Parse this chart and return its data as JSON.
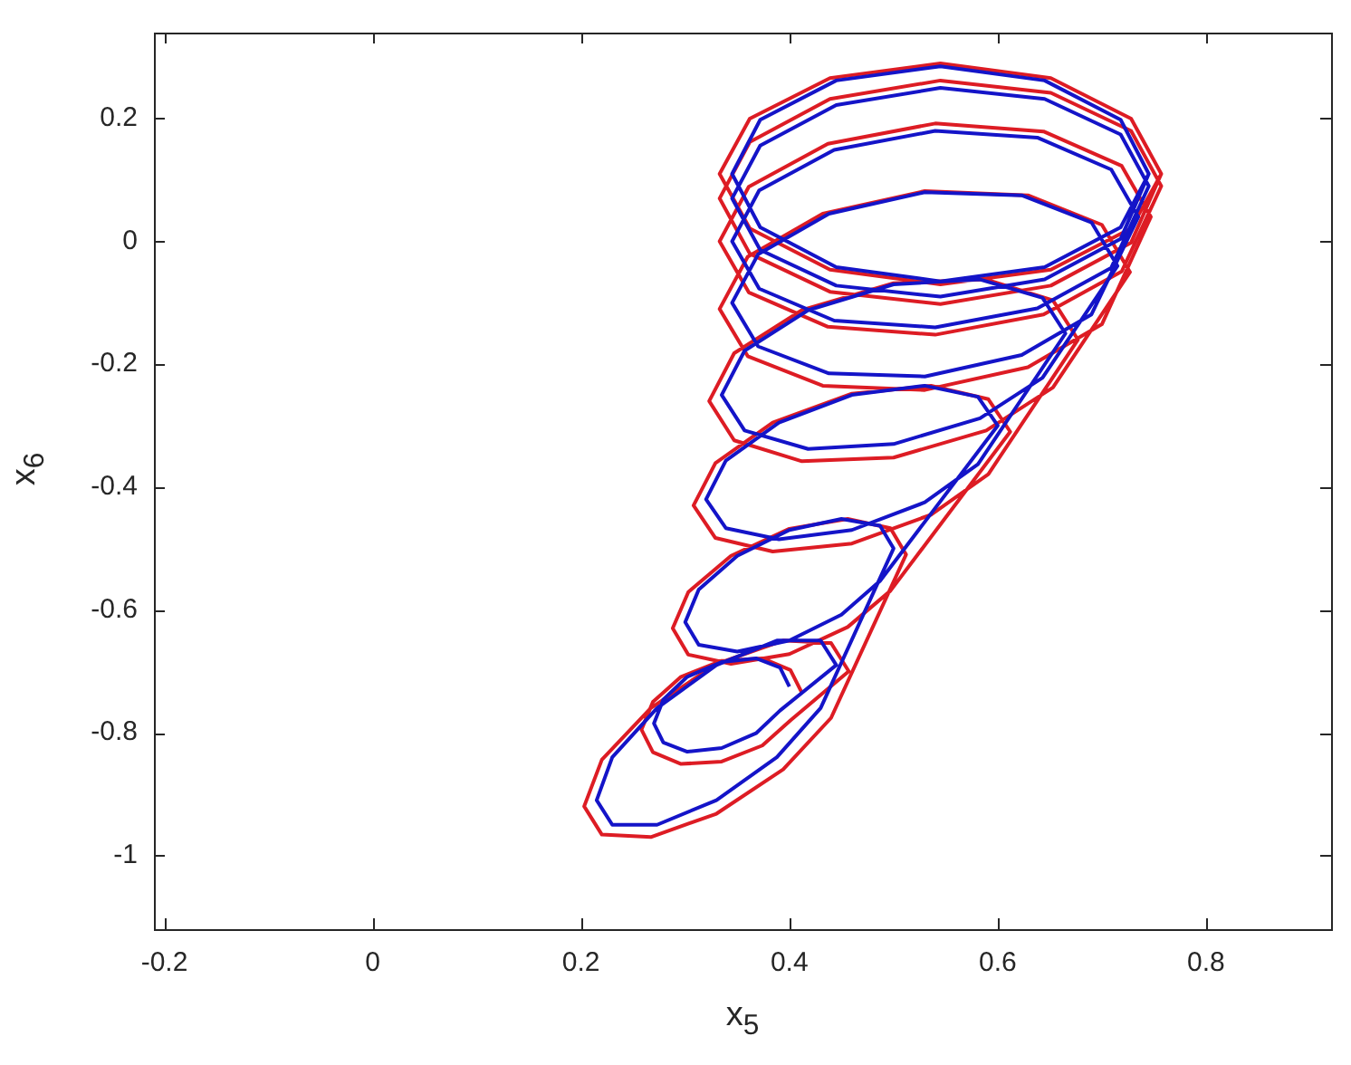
{
  "chart_data": {
    "type": "line",
    "xlabel": "x$_{5}$",
    "ylabel": "x$_{6}$",
    "xlim": [
      -0.21,
      0.92
    ],
    "ylim": [
      -1.12,
      0.34
    ],
    "xticks": [
      -0.2,
      0,
      0.2,
      0.4,
      0.6,
      0.8
    ],
    "yticks": [
      -1,
      -0.8,
      -0.6,
      -0.4,
      -0.2,
      0,
      0.2
    ],
    "grid": false,
    "legend": false,
    "series": [
      {
        "color": "#dd1c24",
        "x": [
          0.412,
          0.401,
          0.374,
          0.335,
          0.296,
          0.269,
          0.258,
          0.269,
          0.296,
          0.335,
          0.374,
          0.401,
          0.457,
          0.44,
          0.394,
          0.33,
          0.267,
          0.22,
          0.203,
          0.22,
          0.267,
          0.33,
          0.394,
          0.44,
          0.512,
          0.497,
          0.456,
          0.4,
          0.344,
          0.303,
          0.288,
          0.303,
          0.344,
          0.4,
          0.456,
          0.497,
          0.612,
          0.591,
          0.536,
          0.46,
          0.384,
          0.329,
          0.308,
          0.329,
          0.384,
          0.46,
          0.536,
          0.591,
          0.677,
          0.653,
          0.589,
          0.5,
          0.412,
          0.347,
          0.323,
          0.347,
          0.412,
          0.5,
          0.589,
          0.653,
          0.727,
          0.7,
          0.629,
          0.53,
          0.432,
          0.36,
          0.333,
          0.36,
          0.432,
          0.53,
          0.629,
          0.7,
          0.747,
          0.719,
          0.644,
          0.54,
          0.437,
          0.361,
          0.333,
          0.361,
          0.437,
          0.54,
          0.644,
          0.719,
          0.757,
          0.728,
          0.651,
          0.545,
          0.439,
          0.362,
          0.333,
          0.362,
          0.439,
          0.545,
          0.651,
          0.728,
          0.757,
          0.728,
          0.651,
          0.545,
          0.439,
          0.362,
          0.333,
          0.362,
          0.439,
          0.545,
          0.651,
          0.728,
          0.757
        ],
        "values": [
          -0.735,
          -0.698,
          -0.679,
          -0.683,
          -0.709,
          -0.75,
          -0.795,
          -0.832,
          -0.851,
          -0.847,
          -0.821,
          -0.78,
          -0.7,
          -0.654,
          -0.65,
          -0.688,
          -0.76,
          -0.844,
          -0.92,
          -0.966,
          -0.97,
          -0.932,
          -0.86,
          -0.776,
          -0.51,
          -0.467,
          -0.452,
          -0.468,
          -0.512,
          -0.571,
          -0.63,
          -0.673,
          -0.688,
          -0.672,
          -0.628,
          -0.569,
          -0.31,
          -0.257,
          -0.235,
          -0.248,
          -0.295,
          -0.361,
          -0.43,
          -0.483,
          -0.505,
          -0.492,
          -0.445,
          -0.379,
          -0.16,
          -0.096,
          -0.062,
          -0.068,
          -0.112,
          -0.182,
          -0.26,
          -0.324,
          -0.358,
          -0.352,
          -0.308,
          -0.238,
          -0.05,
          0.027,
          0.075,
          0.082,
          0.045,
          -0.025,
          -0.11,
          -0.187,
          -0.235,
          -0.242,
          -0.205,
          -0.135,
          0.04,
          0.123,
          0.179,
          0.192,
          0.159,
          0.089,
          0,
          -0.083,
          -0.139,
          -0.152,
          -0.119,
          -0.049,
          0.09,
          0.18,
          0.242,
          0.262,
          0.232,
          0.162,
          0.07,
          -0.02,
          -0.082,
          -0.102,
          -0.072,
          -0.002,
          0.11,
          0.2,
          0.266,
          0.29,
          0.266,
          0.2,
          0.11,
          0.021,
          -0.046,
          -0.07,
          -0.046,
          0.021,
          0.11
        ]
      },
      {
        "color": "#1414c8",
        "x": [
          0.4,
          0.391,
          0.368,
          0.335,
          0.302,
          0.279,
          0.27,
          0.279,
          0.302,
          0.335,
          0.368,
          0.391,
          0.445,
          0.43,
          0.388,
          0.33,
          0.273,
          0.23,
          0.215,
          0.23,
          0.273,
          0.33,
          0.388,
          0.43,
          0.5,
          0.487,
          0.45,
          0.4,
          0.35,
          0.313,
          0.3,
          0.313,
          0.35,
          0.4,
          0.45,
          0.487,
          0.6,
          0.581,
          0.53,
          0.46,
          0.39,
          0.339,
          0.32,
          0.339,
          0.39,
          0.46,
          0.53,
          0.581,
          0.665,
          0.643,
          0.583,
          0.5,
          0.418,
          0.357,
          0.335,
          0.357,
          0.418,
          0.5,
          0.583,
          0.643,
          0.715,
          0.69,
          0.623,
          0.53,
          0.438,
          0.37,
          0.345,
          0.37,
          0.438,
          0.53,
          0.623,
          0.69,
          0.735,
          0.709,
          0.638,
          0.54,
          0.443,
          0.371,
          0.345,
          0.371,
          0.443,
          0.54,
          0.638,
          0.709,
          0.745,
          0.718,
          0.645,
          0.545,
          0.445,
          0.372,
          0.345,
          0.372,
          0.445,
          0.545,
          0.645,
          0.718,
          0.745,
          0.718,
          0.645,
          0.545,
          0.445,
          0.372,
          0.345,
          0.372,
          0.445,
          0.545,
          0.645,
          0.718,
          0.745
        ],
        "values": [
          -0.725,
          -0.694,
          -0.679,
          -0.685,
          -0.709,
          -0.746,
          -0.785,
          -0.816,
          -0.831,
          -0.825,
          -0.801,
          -0.764,
          -0.69,
          -0.65,
          -0.65,
          -0.69,
          -0.76,
          -0.84,
          -0.91,
          -0.95,
          -0.95,
          -0.91,
          -0.84,
          -0.76,
          -0.5,
          -0.463,
          -0.452,
          -0.47,
          -0.512,
          -0.567,
          -0.62,
          -0.657,
          -0.668,
          -0.65,
          -0.608,
          -0.553,
          -0.3,
          -0.253,
          -0.235,
          -0.25,
          -0.295,
          -0.357,
          -0.42,
          -0.467,
          -0.485,
          -0.47,
          -0.425,
          -0.363,
          -0.15,
          -0.092,
          -0.062,
          -0.07,
          -0.112,
          -0.178,
          -0.25,
          -0.308,
          -0.338,
          -0.33,
          -0.288,
          -0.222,
          -0.04,
          0.031,
          0.075,
          0.08,
          0.045,
          -0.021,
          -0.1,
          -0.171,
          -0.215,
          -0.22,
          -0.185,
          -0.119,
          0.04,
          0.117,
          0.169,
          0.18,
          0.149,
          0.083,
          0,
          -0.077,
          -0.129,
          -0.14,
          -0.109,
          -0.043,
          0.09,
          0.174,
          0.232,
          0.25,
          0.222,
          0.156,
          0.07,
          -0.014,
          -0.072,
          -0.09,
          -0.062,
          0.004,
          0.11,
          0.198,
          0.262,
          0.285,
          0.262,
          0.198,
          0.11,
          0.023,
          -0.042,
          -0.065,
          -0.042,
          0.023,
          0.11
        ]
      }
    ]
  }
}
